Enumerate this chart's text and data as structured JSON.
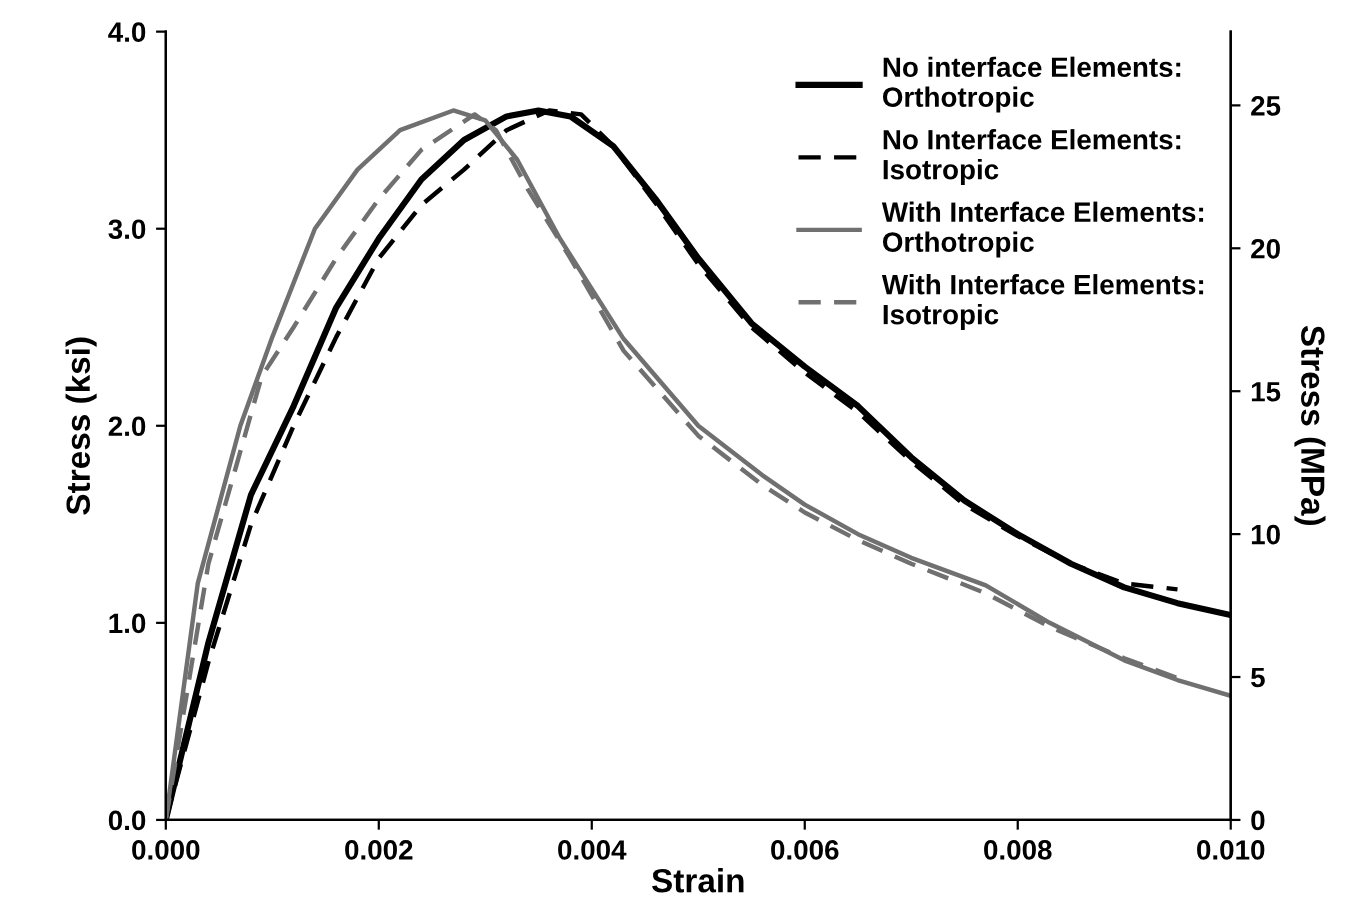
{
  "chart_data": {
    "type": "line",
    "xlabel": "Strain",
    "ylabel": "Stress (ksi)",
    "y2label": "Stress (MPa)",
    "xlim": [
      0,
      0.01
    ],
    "ylim": [
      0,
      4
    ],
    "y2lim": [
      0,
      27.58
    ],
    "xticks": [
      {
        "value": 0,
        "label": "0.000"
      },
      {
        "value": 0.002,
        "label": "0.002"
      },
      {
        "value": 0.004,
        "label": "0.004"
      },
      {
        "value": 0.006,
        "label": "0.006"
      },
      {
        "value": 0.008,
        "label": "0.008"
      },
      {
        "value": 0.01,
        "label": "0.010"
      }
    ],
    "yticks": [
      {
        "value": 0,
        "label": "0.0"
      },
      {
        "value": 1,
        "label": "1.0"
      },
      {
        "value": 2,
        "label": "2.0"
      },
      {
        "value": 3,
        "label": "3.0"
      },
      {
        "value": 4,
        "label": "4.0"
      }
    ],
    "y2ticks": [
      0,
      5,
      10,
      15,
      20,
      25
    ],
    "grid": false,
    "legend": "top right",
    "marker": "none",
    "series": [
      {
        "name": "No interface Elements:\nOrthotropic",
        "color": "#000000",
        "line_style": "solid",
        "x": [
          0,
          0.0004,
          0.0008,
          0.0012,
          0.0016,
          0.002,
          0.0024,
          0.0028,
          0.0032,
          0.0035,
          0.0038,
          0.0042,
          0.0046,
          0.005,
          0.0055,
          0.006,
          0.0065,
          0.007,
          0.0075,
          0.008,
          0.0085,
          0.009,
          0.0095,
          0.01
        ],
        "values": [
          0,
          0.9,
          1.65,
          2.1,
          2.6,
          2.95,
          3.25,
          3.45,
          3.57,
          3.6,
          3.57,
          3.42,
          3.15,
          2.85,
          2.52,
          2.3,
          2.1,
          1.84,
          1.62,
          1.45,
          1.3,
          1.18,
          1.1,
          1.04
        ]
      },
      {
        "name": "No Interface Elements:\nIsotropic",
        "color": "#000000",
        "line_style": "dashed",
        "x": [
          0,
          0.0004,
          0.0008,
          0.0012,
          0.0016,
          0.002,
          0.0024,
          0.0028,
          0.0032,
          0.0036,
          0.0039,
          0.0042,
          0.0046,
          0.005,
          0.0055,
          0.006,
          0.0065,
          0.007,
          0.0075,
          0.008,
          0.0085,
          0.009,
          0.0095
        ],
        "values": [
          0,
          0.8,
          1.5,
          2.0,
          2.45,
          2.85,
          3.12,
          3.3,
          3.5,
          3.6,
          3.58,
          3.42,
          3.13,
          2.82,
          2.5,
          2.27,
          2.07,
          1.82,
          1.6,
          1.44,
          1.3,
          1.2,
          1.17
        ]
      },
      {
        "name": "With Interface Elements:\nOrthotropic",
        "color": "#707070",
        "line_style": "solid",
        "x": [
          0,
          0.0003,
          0.0007,
          0.001,
          0.0014,
          0.0018,
          0.0022,
          0.0027,
          0.003,
          0.0033,
          0.0037,
          0.0043,
          0.005,
          0.0056,
          0.006,
          0.0065,
          0.007,
          0.0077,
          0.0083,
          0.009,
          0.0095,
          0.01
        ],
        "values": [
          0,
          1.2,
          2.0,
          2.45,
          3.0,
          3.3,
          3.5,
          3.6,
          3.55,
          3.35,
          2.95,
          2.44,
          2.0,
          1.75,
          1.6,
          1.45,
          1.33,
          1.19,
          1.0,
          0.81,
          0.71,
          0.63
        ]
      },
      {
        "name": "With Interface Elements:\nIsotropic",
        "color": "#707070",
        "line_style": "dashed",
        "x": [
          0,
          0.0004,
          0.0009,
          0.0012,
          0.0016,
          0.002,
          0.0024,
          0.0029,
          0.0031,
          0.0034,
          0.0038,
          0.0043,
          0.005,
          0.0056,
          0.006,
          0.0065,
          0.007,
          0.0077,
          0.0083,
          0.009,
          0.0096
        ],
        "values": [
          0,
          1.3,
          2.25,
          2.5,
          2.85,
          3.15,
          3.4,
          3.58,
          3.5,
          3.2,
          2.85,
          2.38,
          1.95,
          1.7,
          1.56,
          1.42,
          1.3,
          1.15,
          0.98,
          0.82,
          0.7
        ]
      }
    ]
  }
}
